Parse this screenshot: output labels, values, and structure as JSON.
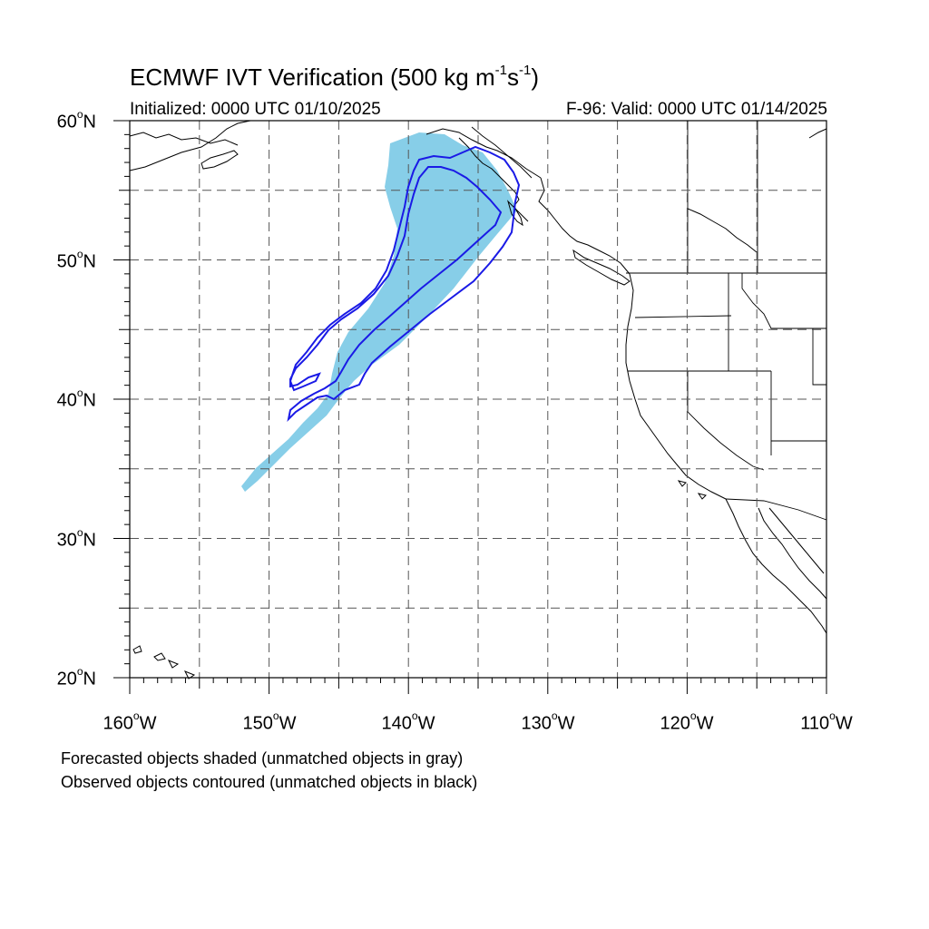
{
  "title": {
    "prefix": "ECMWF IVT Verification (500 kg m",
    "exp1": "-1",
    "mid": "s",
    "exp2": "-1",
    "suffix": ")"
  },
  "initialized": "Initialized: 0000 UTC 01/10/2025",
  "valid": "F-96: Valid: 0000 UTC 01/14/2025",
  "lat_labels": [
    {
      "value": "60",
      "deg": "o",
      "hemi": "N"
    },
    {
      "value": "50",
      "deg": "o",
      "hemi": "N"
    },
    {
      "value": "40",
      "deg": "o",
      "hemi": "N"
    },
    {
      "value": "30",
      "deg": "o",
      "hemi": "N"
    },
    {
      "value": "20",
      "deg": "o",
      "hemi": "N"
    }
  ],
  "lon_labels": [
    {
      "value": "160",
      "deg": "o",
      "hemi": "W"
    },
    {
      "value": "150",
      "deg": "o",
      "hemi": "W"
    },
    {
      "value": "140",
      "deg": "o",
      "hemi": "W"
    },
    {
      "value": "130",
      "deg": "o",
      "hemi": "W"
    },
    {
      "value": "120",
      "deg": "o",
      "hemi": "W"
    },
    {
      "value": "110",
      "deg": "o",
      "hemi": "W"
    }
  ],
  "footnotes": [
    "Forecasted objects shaded (unmatched objects in gray)",
    "Observed objects contoured (unmatched objects in black)"
  ],
  "map": {
    "lon_range": [
      -160,
      -110
    ],
    "lat_range": [
      20,
      60
    ],
    "grid_spacing_deg": 5,
    "forecast_fill_color": "#87CEE8",
    "observed_contour_color": "#1a1ae6",
    "coastline_color": "#000000",
    "grid_line_style": "dashed"
  }
}
